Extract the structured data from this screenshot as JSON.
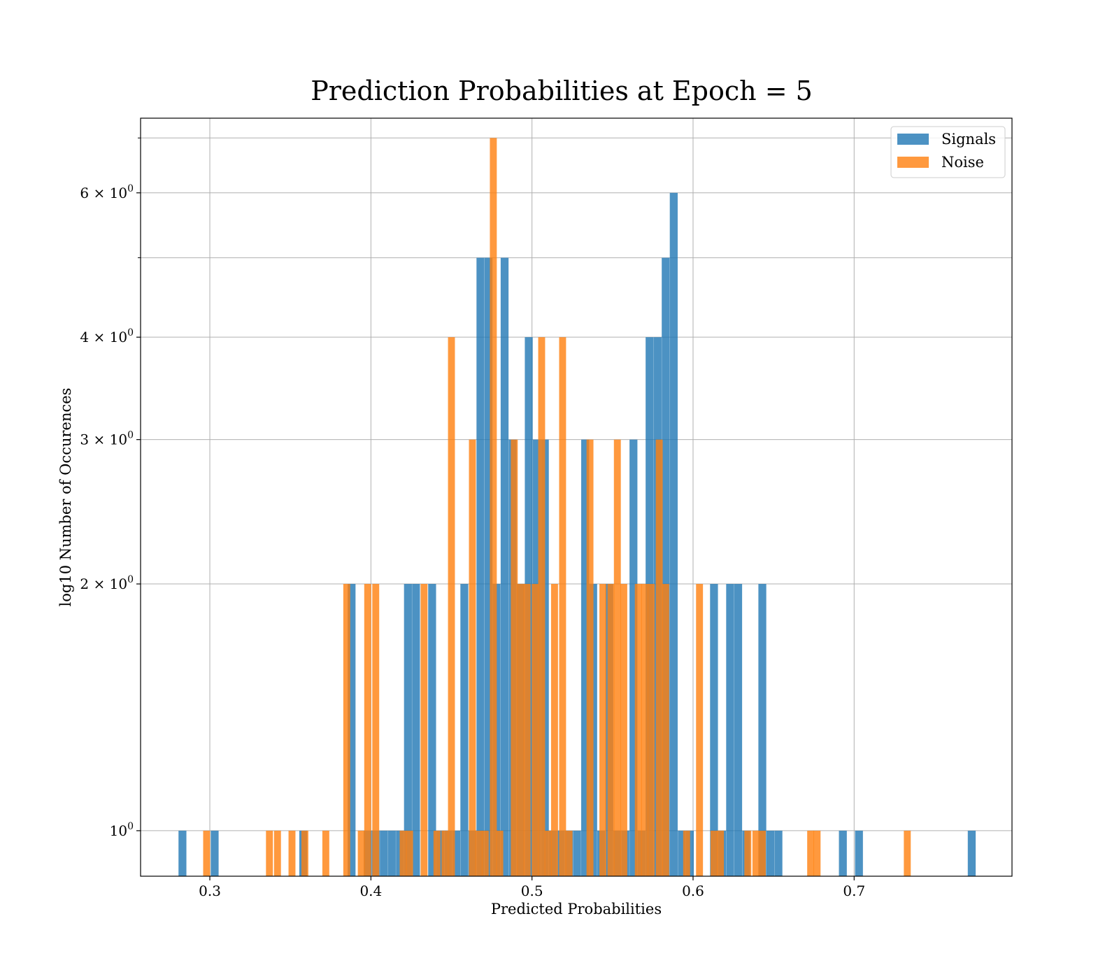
{
  "chart_data": {
    "type": "bar",
    "title": "Prediction Probabilities at Epoch = 5",
    "xlabel": "Predicted Probabilities",
    "ylabel": "log10 Number of Occurences",
    "xlim": [
      0.257,
      0.798
    ],
    "ylim": [
      0.88,
      7.4
    ],
    "yscale": "log",
    "grid": true,
    "legend_position": "top-right",
    "x_ticks": [
      {
        "value": 0.3,
        "label": "0.3"
      },
      {
        "value": 0.4,
        "label": "0.4"
      },
      {
        "value": 0.5,
        "label": "0.5"
      },
      {
        "value": 0.6,
        "label": "0.6"
      },
      {
        "value": 0.7,
        "label": "0.7"
      }
    ],
    "y_ticks": [
      {
        "value": 1,
        "base": "10",
        "exp": "0"
      },
      {
        "value": 2,
        "base": "2 × 10",
        "exp": "0"
      },
      {
        "value": 3,
        "base": "3 × 10",
        "exp": "0"
      },
      {
        "value": 4,
        "base": "4 × 10",
        "exp": "0"
      },
      {
        "value": 6,
        "base": "6 × 10",
        "exp": "0"
      }
    ],
    "y_minor_ticks": [
      5,
      7
    ],
    "series": [
      {
        "name": "Signals",
        "color": "#1f77b4",
        "opacity": 0.8,
        "bin_width": 0.0049,
        "bins": [
          [
            0.283,
            1
          ],
          [
            0.303,
            1
          ],
          [
            0.358,
            1
          ],
          [
            0.388,
            2
          ],
          [
            0.398,
            1
          ],
          [
            0.403,
            1
          ],
          [
            0.408,
            1
          ],
          [
            0.413,
            1
          ],
          [
            0.418,
            1
          ],
          [
            0.423,
            2
          ],
          [
            0.428,
            2
          ],
          [
            0.438,
            2
          ],
          [
            0.443,
            1
          ],
          [
            0.448,
            1
          ],
          [
            0.453,
            1
          ],
          [
            0.458,
            2
          ],
          [
            0.463,
            1
          ],
          [
            0.468,
            5
          ],
          [
            0.473,
            5
          ],
          [
            0.478,
            2
          ],
          [
            0.483,
            5
          ],
          [
            0.488,
            3
          ],
          [
            0.493,
            2
          ],
          [
            0.498,
            4
          ],
          [
            0.503,
            3
          ],
          [
            0.508,
            3
          ],
          [
            0.513,
            1
          ],
          [
            0.518,
            1
          ],
          [
            0.523,
            1
          ],
          [
            0.528,
            1
          ],
          [
            0.533,
            3
          ],
          [
            0.538,
            2
          ],
          [
            0.543,
            1
          ],
          [
            0.548,
            2
          ],
          [
            0.553,
            1
          ],
          [
            0.558,
            1
          ],
          [
            0.563,
            3
          ],
          [
            0.568,
            1
          ],
          [
            0.573,
            4
          ],
          [
            0.578,
            4
          ],
          [
            0.583,
            5
          ],
          [
            0.588,
            6
          ],
          [
            0.593,
            1
          ],
          [
            0.598,
            1
          ],
          [
            0.613,
            2
          ],
          [
            0.618,
            1
          ],
          [
            0.623,
            2
          ],
          [
            0.628,
            2
          ],
          [
            0.633,
            1
          ],
          [
            0.643,
            2
          ],
          [
            0.648,
            1
          ],
          [
            0.653,
            1
          ],
          [
            0.693,
            1
          ],
          [
            0.703,
            1
          ],
          [
            0.773,
            1
          ]
        ]
      },
      {
        "name": "Noise",
        "color": "#ff7f0e",
        "opacity": 0.8,
        "bin_width": 0.0043,
        "bins": [
          [
            0.298,
            1
          ],
          [
            0.337,
            1
          ],
          [
            0.342,
            1
          ],
          [
            0.351,
            1
          ],
          [
            0.359,
            1
          ],
          [
            0.372,
            1
          ],
          [
            0.385,
            2
          ],
          [
            0.394,
            1
          ],
          [
            0.398,
            2
          ],
          [
            0.403,
            2
          ],
          [
            0.42,
            1
          ],
          [
            0.424,
            1
          ],
          [
            0.433,
            2
          ],
          [
            0.441,
            1
          ],
          [
            0.446,
            1
          ],
          [
            0.45,
            4
          ],
          [
            0.463,
            3
          ],
          [
            0.467,
            1
          ],
          [
            0.471,
            1
          ],
          [
            0.476,
            7
          ],
          [
            0.48,
            1
          ],
          [
            0.489,
            3
          ],
          [
            0.493,
            2
          ],
          [
            0.497,
            2
          ],
          [
            0.502,
            2
          ],
          [
            0.506,
            4
          ],
          [
            0.51,
            1
          ],
          [
            0.514,
            2
          ],
          [
            0.519,
            4
          ],
          [
            0.523,
            1
          ],
          [
            0.536,
            3
          ],
          [
            0.544,
            2
          ],
          [
            0.549,
            2
          ],
          [
            0.553,
            3
          ],
          [
            0.557,
            2
          ],
          [
            0.566,
            2
          ],
          [
            0.57,
            2
          ],
          [
            0.574,
            2
          ],
          [
            0.579,
            3
          ],
          [
            0.583,
            2
          ],
          [
            0.596,
            1
          ],
          [
            0.604,
            2
          ],
          [
            0.613,
            1
          ],
          [
            0.617,
            1
          ],
          [
            0.634,
            1
          ],
          [
            0.639,
            1
          ],
          [
            0.643,
            1
          ],
          [
            0.673,
            1
          ],
          [
            0.677,
            1
          ],
          [
            0.733,
            1
          ]
        ]
      }
    ]
  }
}
